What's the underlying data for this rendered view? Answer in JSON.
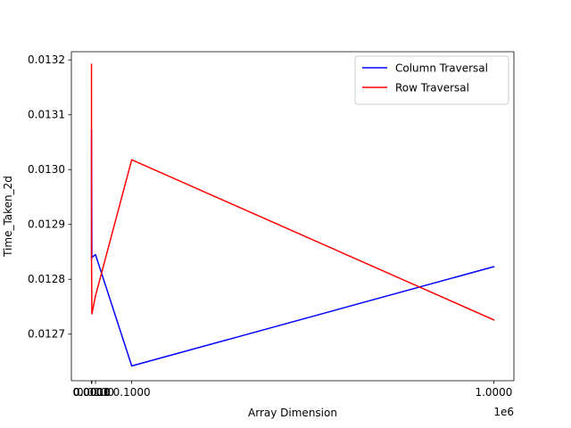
{
  "chart_data": {
    "type": "line",
    "title": "",
    "xlabel": "Array Dimension",
    "ylabel": "Time_Taken_2d",
    "x_offset_text": "1e6",
    "xlim": [
      -0.05,
      1.05
    ],
    "ylim": [
      0.012615,
      0.013215
    ],
    "x_ticks": [
      {
        "value": 0.0,
        "label": "0.0000"
      },
      {
        "value": 0.0001,
        "label": "0.0001"
      },
      {
        "value": 0.001,
        "label": "0.0010"
      },
      {
        "value": 0.01,
        "label": "0.0100"
      },
      {
        "value": 0.1,
        "label": "0.1000"
      },
      {
        "value": 1.0,
        "label": "1.0000"
      }
    ],
    "y_ticks": [
      {
        "value": 0.0127,
        "label": "0.0127"
      },
      {
        "value": 0.0128,
        "label": "0.0128"
      },
      {
        "value": 0.0129,
        "label": "0.0129"
      },
      {
        "value": 0.013,
        "label": "0.0130"
      },
      {
        "value": 0.0131,
        "label": "0.0131"
      },
      {
        "value": 0.0132,
        "label": "0.0132"
      }
    ],
    "grid": false,
    "legend_position": "top-right",
    "series": [
      {
        "name": "Column Traversal",
        "color": "#0000ff",
        "x": [
          0.0,
          0.0001,
          0.001,
          0.01,
          0.1,
          1.0
        ],
        "y": [
          0.012838,
          0.013072,
          0.01284,
          0.012845,
          0.012642,
          0.012823
        ]
      },
      {
        "name": "Row Traversal",
        "color": "#ff0000",
        "x": [
          0.0,
          0.0001,
          0.001,
          0.01,
          0.1,
          1.0
        ],
        "y": [
          0.013192,
          0.012835,
          0.012737,
          0.01277,
          0.013018,
          0.012726
        ]
      }
    ]
  }
}
